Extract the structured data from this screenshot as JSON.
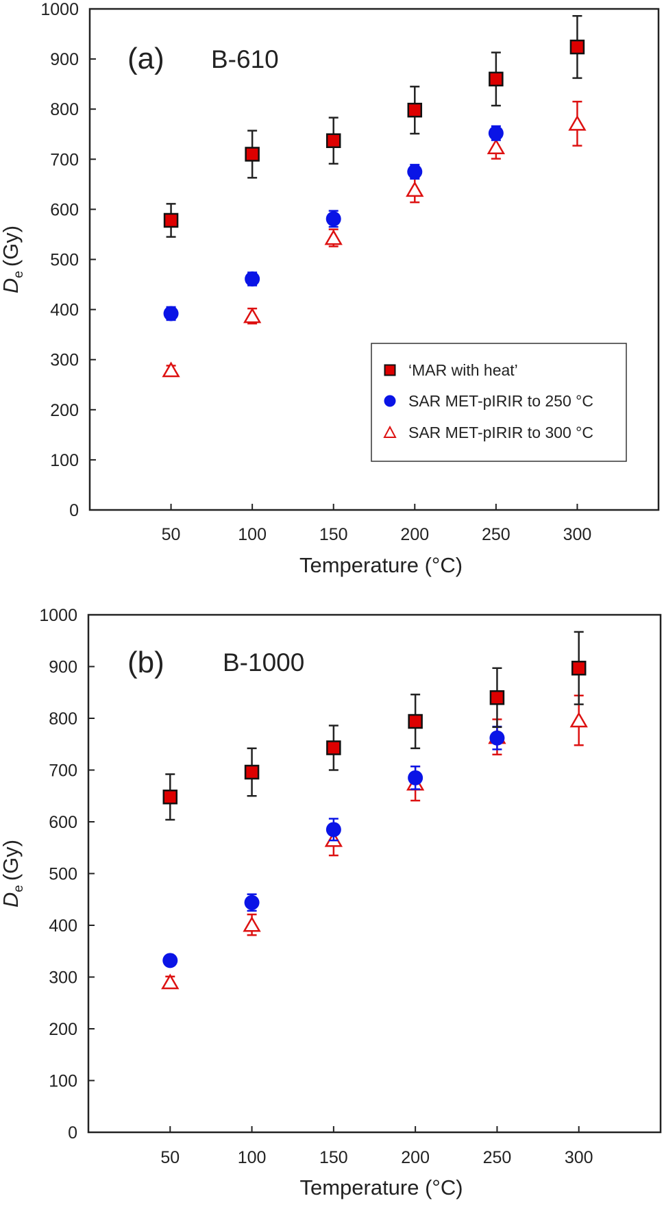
{
  "colors": {
    "mar": "#dd0000",
    "sar250": "#0a14e6",
    "sar300": "#dd1111",
    "errorbar_mar": "#222222",
    "axis": "#222222"
  },
  "chart_data": [
    {
      "type": "scatter",
      "panel_label": "(a)",
      "sample": "B-610",
      "xlabel": "Temperature (°C)",
      "ylabel_main": "D",
      "ylabel_sub": "e",
      "ylabel_unit": "(Gy)",
      "xlim": [
        0,
        350
      ],
      "ylim": [
        0,
        1000
      ],
      "xticks": [
        50,
        100,
        150,
        200,
        250,
        300
      ],
      "yticks": [
        0,
        100,
        200,
        300,
        400,
        500,
        600,
        700,
        800,
        900,
        1000
      ],
      "legend_position": "lower-right",
      "series": [
        {
          "name": "‘MAR with heat’",
          "marker": "square",
          "x": [
            50,
            100,
            150,
            200,
            250,
            300
          ],
          "y": [
            578,
            710,
            737,
            798,
            860,
            924
          ],
          "err": [
            33,
            47,
            46,
            47,
            53,
            62
          ]
        },
        {
          "name": "SAR MET-pIRIR to 250 °C",
          "marker": "circle",
          "x": [
            50,
            100,
            150,
            200,
            250
          ],
          "y": [
            392,
            461,
            581,
            675,
            752
          ],
          "err": [
            13,
            13,
            16,
            14,
            14
          ]
        },
        {
          "name": "SAR MET-pIRIR to 300 °C",
          "marker": "triangle",
          "x": [
            50,
            100,
            150,
            200,
            250,
            300
          ],
          "y": [
            279,
            387,
            543,
            639,
            724,
            771
          ],
          "err": [
            9,
            15,
            17,
            25,
            23,
            44
          ]
        }
      ]
    },
    {
      "type": "scatter",
      "panel_label": "(b)",
      "sample": "B-1000",
      "xlabel": "Temperature (°C)",
      "ylabel_main": "D",
      "ylabel_sub": "e",
      "ylabel_unit": "(Gy)",
      "xlim": [
        0,
        350
      ],
      "ylim": [
        0,
        1000
      ],
      "xticks": [
        50,
        100,
        150,
        200,
        250,
        300
      ],
      "yticks": [
        0,
        100,
        200,
        300,
        400,
        500,
        600,
        700,
        800,
        900,
        1000
      ],
      "series": [
        {
          "name": "‘MAR with heat’",
          "marker": "square",
          "x": [
            50,
            100,
            150,
            200,
            250,
            300
          ],
          "y": [
            648,
            696,
            743,
            794,
            840,
            897
          ],
          "err": [
            44,
            46,
            43,
            52,
            57,
            70
          ]
        },
        {
          "name": "SAR MET-pIRIR to 250 °C",
          "marker": "circle",
          "x": [
            50,
            100,
            150,
            200,
            250
          ],
          "y": [
            332,
            444,
            585,
            685,
            762
          ],
          "err": [
            9,
            16,
            21,
            22,
            22
          ]
        },
        {
          "name": "SAR MET-pIRIR to 300 °C",
          "marker": "triangle",
          "x": [
            50,
            100,
            150,
            200,
            250,
            300
          ],
          "y": [
            290,
            401,
            565,
            674,
            764,
            796
          ],
          "err": [
            11,
            20,
            30,
            33,
            34,
            48
          ]
        }
      ]
    }
  ]
}
